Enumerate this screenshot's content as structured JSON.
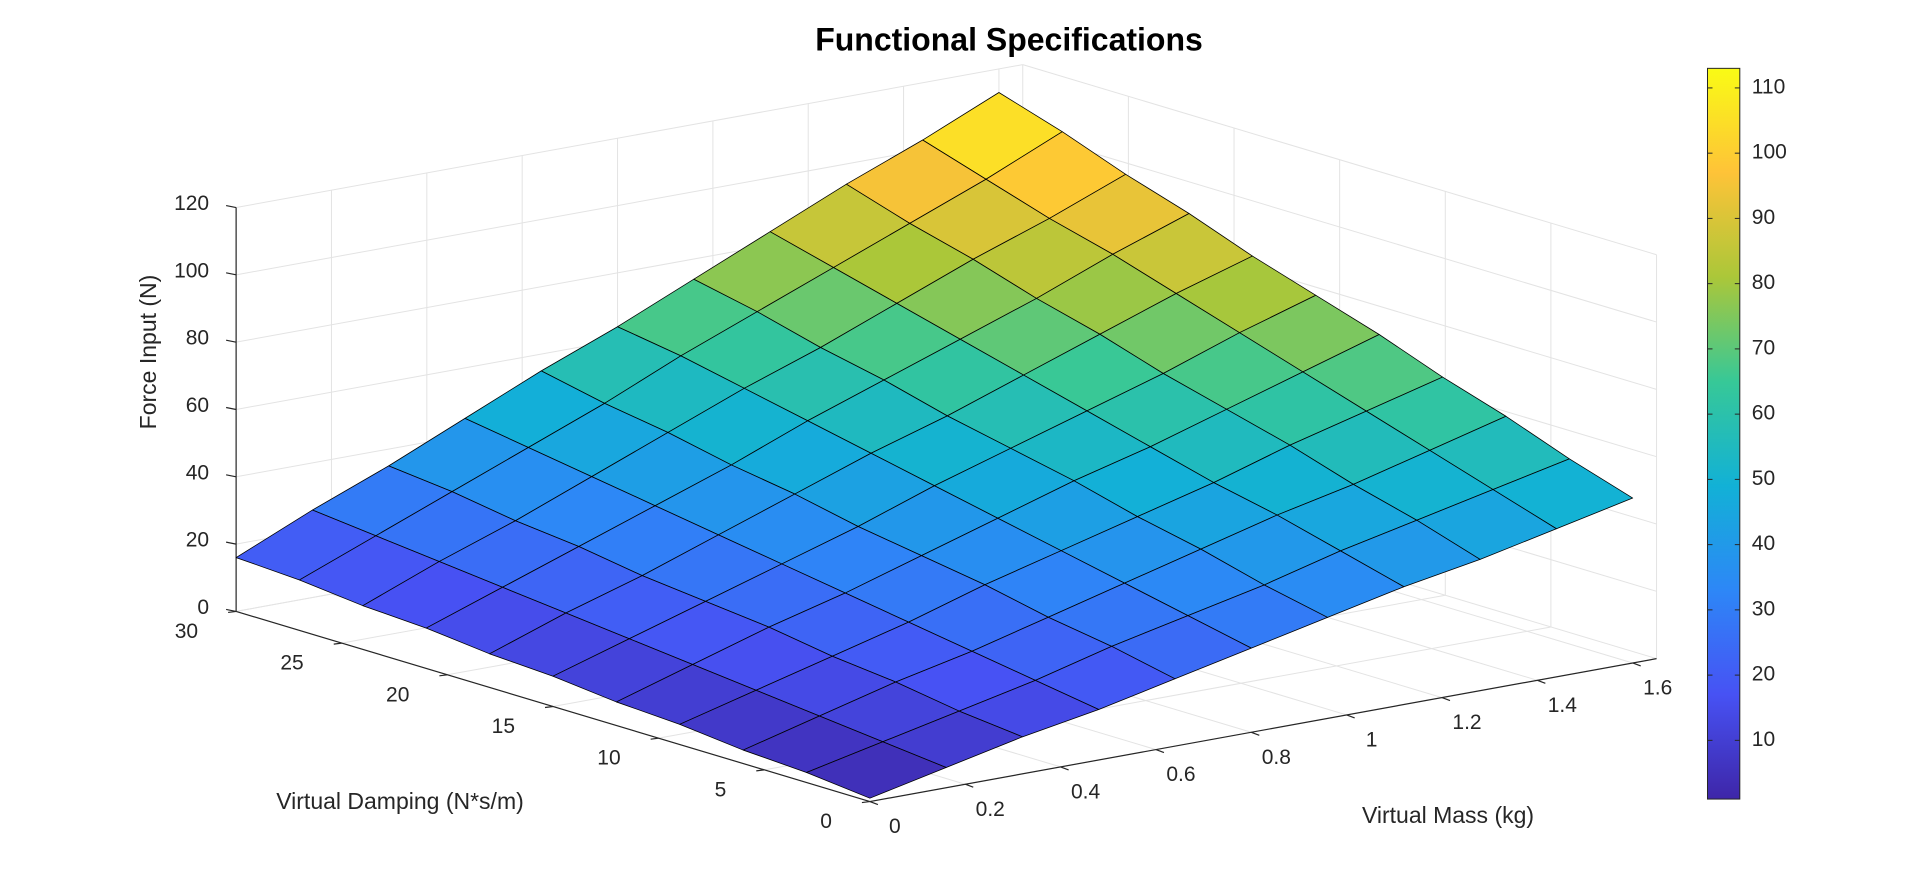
{
  "chart_data": {
    "type": "surface",
    "title": "Functional Specifications",
    "xlabel": "Virtual Mass (kg)",
    "ylabel": "Virtual Damping (N*s/m)",
    "zlabel": "Force Input (N)",
    "x": [
      0,
      0.16,
      0.32,
      0.48,
      0.64,
      0.8,
      0.96,
      1.12,
      1.28,
      1.44,
      1.6
    ],
    "y": [
      0,
      3,
      6,
      9,
      12,
      15,
      18,
      21,
      24,
      27,
      30
    ],
    "z": [
      [
        1,
        6,
        11,
        15,
        20,
        25,
        30,
        35,
        39,
        44,
        49
      ],
      [
        3,
        8,
        13,
        18,
        24,
        29,
        34,
        40,
        45,
        50,
        55
      ],
      [
        4,
        10,
        16,
        21,
        27,
        33,
        39,
        45,
        50,
        56,
        62
      ],
      [
        6,
        12,
        18,
        24,
        31,
        37,
        43,
        49,
        56,
        62,
        68
      ],
      [
        7,
        14,
        21,
        27,
        34,
        41,
        48,
        54,
        61,
        68,
        75
      ],
      [
        9,
        16,
        23,
        30,
        37,
        45,
        52,
        59,
        66,
        74,
        81
      ],
      [
        10,
        18,
        25,
        33,
        41,
        49,
        56,
        64,
        72,
        80,
        87
      ],
      [
        12,
        20,
        28,
        36,
        44,
        53,
        61,
        69,
        77,
        86,
        94
      ],
      [
        13,
        22,
        30,
        39,
        48,
        57,
        65,
        74,
        83,
        91,
        100
      ],
      [
        15,
        24,
        33,
        42,
        51,
        61,
        70,
        79,
        88,
        97,
        107
      ],
      [
        16,
        26,
        35,
        45,
        55,
        64,
        74,
        84,
        94,
        103,
        113
      ]
    ],
    "xlim": [
      0,
      1.65
    ],
    "ylim": [
      0,
      30
    ],
    "zlim": [
      0,
      120
    ],
    "xticks": [
      0,
      0.2,
      0.4,
      0.6,
      0.8,
      1,
      1.2,
      1.4,
      1.6
    ],
    "yticks": [
      0,
      5,
      10,
      15,
      20,
      25,
      30
    ],
    "zticks": [
      0,
      20,
      40,
      60,
      80,
      100,
      120
    ],
    "clim": [
      1,
      113
    ],
    "cticks": [
      10,
      20,
      30,
      40,
      50,
      60,
      70,
      80,
      90,
      100,
      110
    ],
    "colormap": [
      "#3e26a8",
      "#4752f4",
      "#2d87f7",
      "#12b1d6",
      "#37c897",
      "#abc739",
      "#fec338",
      "#f9fb15"
    ],
    "edge_color": "#000000",
    "grid": true
  }
}
